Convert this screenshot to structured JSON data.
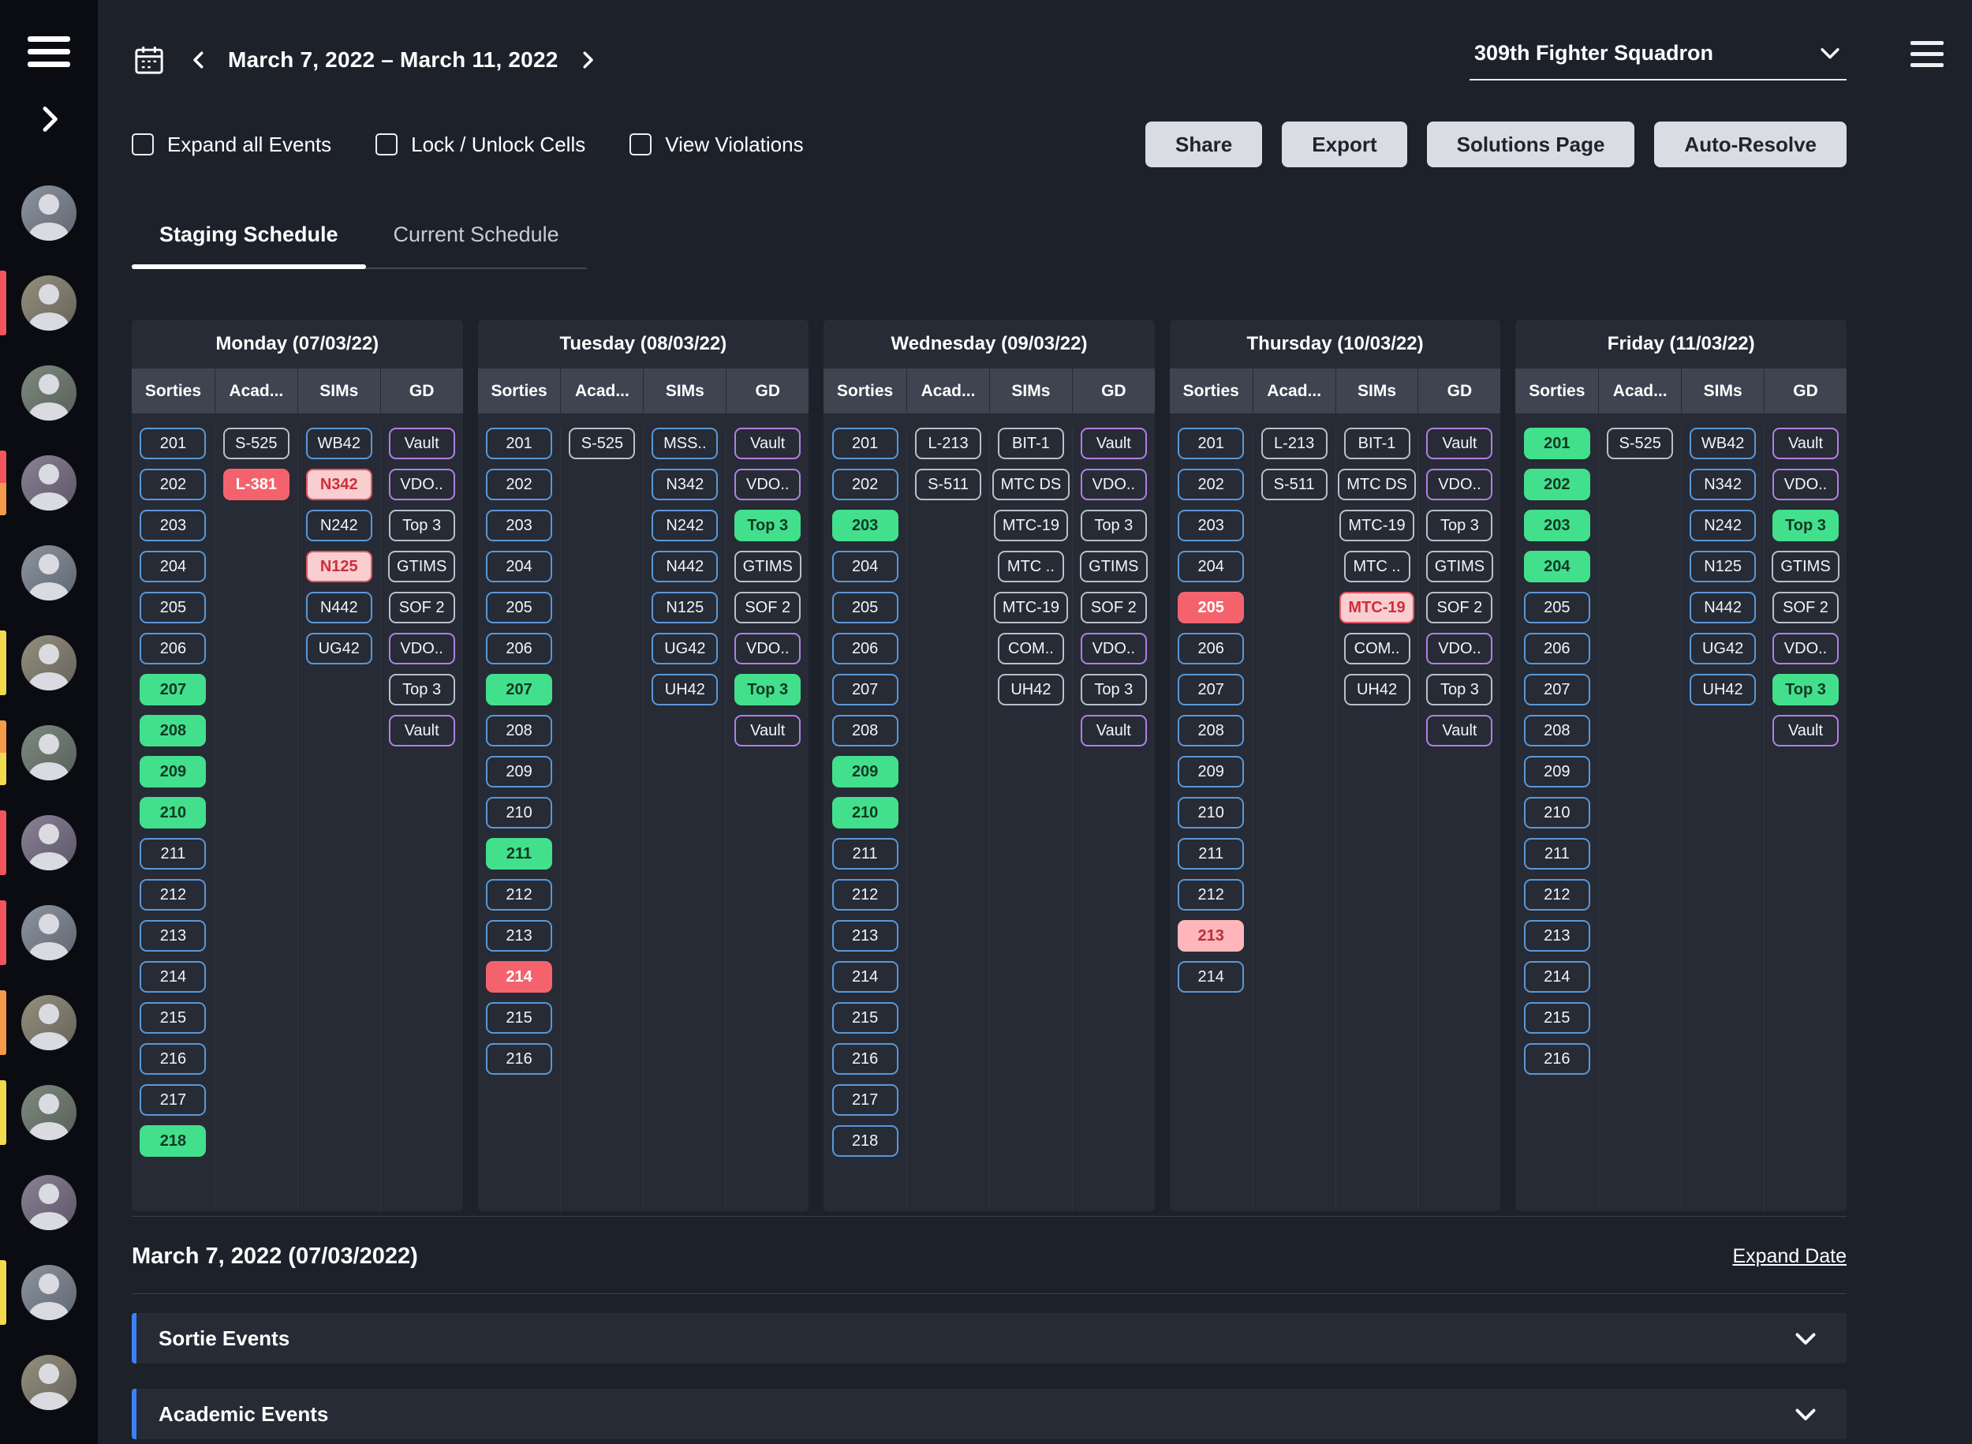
{
  "colors": {
    "accent_blue": "#3b82f6",
    "chip_blue_outline": "#5b97d8",
    "chip_gray_outline": "#b9c0cb",
    "chip_purple_outline": "#b37fe3",
    "chip_green": "#42e08c",
    "chip_red": "#f4636d",
    "chip_pink": "#ffb6ba",
    "bar_red": "#f2545e",
    "bar_orange": "#f59a4b",
    "bar_yellow": "#f2d94e"
  },
  "icons": {
    "menu": "hamburger-icon",
    "sidebar_expand": "chevron-right-icon",
    "calendar": "calendar-icon",
    "prev": "chevron-left-icon",
    "next": "chevron-right-icon",
    "dropdown": "chevron-down-icon",
    "section_toggle": "chevron-down-icon"
  },
  "variants": {
    "b": "blue-outline",
    "gy": "gray-outline",
    "p": "purple-outline",
    "g": "green-filled",
    "r": "red-filled",
    "pk": "pink-filled",
    "ro": "red-alert-filled"
  },
  "sidebar": {
    "users": [
      {
        "bars": []
      },
      {
        "bars": [
          "red"
        ]
      },
      {
        "bars": []
      },
      {
        "bars": [
          "red",
          "orange"
        ]
      },
      {
        "bars": []
      },
      {
        "bars": [
          "yellow"
        ]
      },
      {
        "bars": [
          "orange",
          "yellow"
        ]
      },
      {
        "bars": [
          "red"
        ]
      },
      {
        "bars": [
          "red"
        ]
      },
      {
        "bars": [
          "orange"
        ]
      },
      {
        "bars": [
          "yellow"
        ]
      },
      {
        "bars": []
      },
      {
        "bars": [
          "yellow"
        ]
      },
      {
        "bars": []
      }
    ]
  },
  "header": {
    "date_range": "March 7, 2022 – March 11, 2022",
    "squadron": "309th Fighter Squadron"
  },
  "controls": {
    "checkboxes": [
      {
        "label": "Expand all Events",
        "checked": false
      },
      {
        "label": "Lock / Unlock Cells",
        "checked": false
      },
      {
        "label": "View Violations",
        "checked": false
      }
    ],
    "buttons": [
      "Share",
      "Export",
      "Solutions Page",
      "Auto-Resolve"
    ]
  },
  "tabs": [
    {
      "label": "Staging Schedule",
      "active": true
    },
    {
      "label": "Current Schedule",
      "active": false
    }
  ],
  "schedule": {
    "column_headers": [
      "Sorties",
      "Acad...",
      "SIMs",
      "GD"
    ],
    "days": [
      {
        "key": "monday",
        "title": "Monday (07/03/22)",
        "sorties": [
          {
            "t": "201",
            "v": "b"
          },
          {
            "t": "202",
            "v": "b"
          },
          {
            "t": "203",
            "v": "b"
          },
          {
            "t": "204",
            "v": "b"
          },
          {
            "t": "205",
            "v": "b"
          },
          {
            "t": "206",
            "v": "b"
          },
          {
            "t": "207",
            "v": "g"
          },
          {
            "t": "208",
            "v": "g"
          },
          {
            "t": "209",
            "v": "g"
          },
          {
            "t": "210",
            "v": "g"
          },
          {
            "t": "211",
            "v": "b"
          },
          {
            "t": "212",
            "v": "b"
          },
          {
            "t": "213",
            "v": "b"
          },
          {
            "t": "214",
            "v": "b"
          },
          {
            "t": "215",
            "v": "b"
          },
          {
            "t": "216",
            "v": "b"
          },
          {
            "t": "217",
            "v": "b"
          },
          {
            "t": "218",
            "v": "g"
          }
        ],
        "acad": [
          {
            "t": "S-525",
            "v": "gy"
          },
          {
            "t": "L-381",
            "v": "r"
          }
        ],
        "sims": [
          {
            "t": "WB42",
            "v": "b"
          },
          {
            "t": "N342",
            "v": "ro"
          },
          {
            "t": "N242",
            "v": "b"
          },
          {
            "t": "N125",
            "v": "ro"
          },
          {
            "t": "N442",
            "v": "b"
          },
          {
            "t": "UG42",
            "v": "b"
          }
        ],
        "gd": [
          {
            "t": "Vault",
            "v": "p"
          },
          {
            "t": "VDO..",
            "v": "p"
          },
          {
            "t": "Top 3",
            "v": "gy"
          },
          {
            "t": "GTIMS",
            "v": "gy"
          },
          {
            "t": "SOF 2",
            "v": "gy"
          },
          {
            "t": "VDO..",
            "v": "p"
          },
          {
            "t": "Top 3",
            "v": "gy"
          },
          {
            "t": "Vault",
            "v": "p"
          }
        ]
      },
      {
        "key": "tuesday",
        "title": "Tuesday (08/03/22)",
        "sorties": [
          {
            "t": "201",
            "v": "b"
          },
          {
            "t": "202",
            "v": "b"
          },
          {
            "t": "203",
            "v": "b"
          },
          {
            "t": "204",
            "v": "b"
          },
          {
            "t": "205",
            "v": "b"
          },
          {
            "t": "206",
            "v": "b"
          },
          {
            "t": "207",
            "v": "g"
          },
          {
            "t": "208",
            "v": "b"
          },
          {
            "t": "209",
            "v": "b"
          },
          {
            "t": "210",
            "v": "b"
          },
          {
            "t": "211",
            "v": "g"
          },
          {
            "t": "212",
            "v": "b"
          },
          {
            "t": "213",
            "v": "b"
          },
          {
            "t": "214",
            "v": "r"
          },
          {
            "t": "215",
            "v": "b"
          },
          {
            "t": "216",
            "v": "b"
          }
        ],
        "acad": [
          {
            "t": "S-525",
            "v": "gy"
          }
        ],
        "sims": [
          {
            "t": "MSS..",
            "v": "b"
          },
          {
            "t": "N342",
            "v": "b"
          },
          {
            "t": "N242",
            "v": "b"
          },
          {
            "t": "N442",
            "v": "b"
          },
          {
            "t": "N125",
            "v": "b"
          },
          {
            "t": "UG42",
            "v": "b"
          },
          {
            "t": "UH42",
            "v": "b"
          }
        ],
        "gd": [
          {
            "t": "Vault",
            "v": "p"
          },
          {
            "t": "VDO..",
            "v": "p"
          },
          {
            "t": "Top 3",
            "v": "g"
          },
          {
            "t": "GTIMS",
            "v": "gy"
          },
          {
            "t": "SOF 2",
            "v": "gy"
          },
          {
            "t": "VDO..",
            "v": "p"
          },
          {
            "t": "Top 3",
            "v": "g"
          },
          {
            "t": "Vault",
            "v": "p"
          }
        ]
      },
      {
        "key": "wednesday",
        "title": "Wednesday (09/03/22)",
        "sorties": [
          {
            "t": "201",
            "v": "b"
          },
          {
            "t": "202",
            "v": "b"
          },
          {
            "t": "203",
            "v": "g"
          },
          {
            "t": "204",
            "v": "b"
          },
          {
            "t": "205",
            "v": "b"
          },
          {
            "t": "206",
            "v": "b"
          },
          {
            "t": "207",
            "v": "b"
          },
          {
            "t": "208",
            "v": "b"
          },
          {
            "t": "209",
            "v": "g"
          },
          {
            "t": "210",
            "v": "g"
          },
          {
            "t": "211",
            "v": "b"
          },
          {
            "t": "212",
            "v": "b"
          },
          {
            "t": "213",
            "v": "b"
          },
          {
            "t": "214",
            "v": "b"
          },
          {
            "t": "215",
            "v": "b"
          },
          {
            "t": "216",
            "v": "b"
          },
          {
            "t": "217",
            "v": "b"
          },
          {
            "t": "218",
            "v": "b"
          }
        ],
        "acad": [
          {
            "t": "L-213",
            "v": "gy"
          },
          {
            "t": "S-511",
            "v": "gy"
          }
        ],
        "sims": [
          {
            "t": "BIT-1",
            "v": "gy"
          },
          {
            "t": "MTC DS",
            "v": "gy"
          },
          {
            "t": "MTC-19",
            "v": "gy"
          },
          {
            "t": "MTC ..",
            "v": "gy"
          },
          {
            "t": "MTC-19",
            "v": "gy"
          },
          {
            "t": "COM..",
            "v": "gy"
          },
          {
            "t": "UH42",
            "v": "gy"
          }
        ],
        "gd": [
          {
            "t": "Vault",
            "v": "p"
          },
          {
            "t": "VDO..",
            "v": "p"
          },
          {
            "t": "Top 3",
            "v": "gy"
          },
          {
            "t": "GTIMS",
            "v": "gy"
          },
          {
            "t": "SOF 2",
            "v": "gy"
          },
          {
            "t": "VDO..",
            "v": "p"
          },
          {
            "t": "Top 3",
            "v": "gy"
          },
          {
            "t": "Vault",
            "v": "p"
          }
        ]
      },
      {
        "key": "thursday",
        "title": "Thursday (10/03/22)",
        "sorties": [
          {
            "t": "201",
            "v": "b"
          },
          {
            "t": "202",
            "v": "b"
          },
          {
            "t": "203",
            "v": "b"
          },
          {
            "t": "204",
            "v": "b"
          },
          {
            "t": "205",
            "v": "r"
          },
          {
            "t": "206",
            "v": "b"
          },
          {
            "t": "207",
            "v": "b"
          },
          {
            "t": "208",
            "v": "b"
          },
          {
            "t": "209",
            "v": "b"
          },
          {
            "t": "210",
            "v": "b"
          },
          {
            "t": "211",
            "v": "b"
          },
          {
            "t": "212",
            "v": "b"
          },
          {
            "t": "213",
            "v": "pk"
          },
          {
            "t": "214",
            "v": "b"
          }
        ],
        "acad": [
          {
            "t": "L-213",
            "v": "gy"
          },
          {
            "t": "S-511",
            "v": "gy"
          }
        ],
        "sims": [
          {
            "t": "BIT-1",
            "v": "gy"
          },
          {
            "t": "MTC DS",
            "v": "gy"
          },
          {
            "t": "MTC-19",
            "v": "gy"
          },
          {
            "t": "MTC ..",
            "v": "gy"
          },
          {
            "t": "MTC-19",
            "v": "ro"
          },
          {
            "t": "COM..",
            "v": "gy"
          },
          {
            "t": "UH42",
            "v": "gy"
          }
        ],
        "gd": [
          {
            "t": "Vault",
            "v": "p"
          },
          {
            "t": "VDO..",
            "v": "p"
          },
          {
            "t": "Top 3",
            "v": "gy"
          },
          {
            "t": "GTIMS",
            "v": "gy"
          },
          {
            "t": "SOF 2",
            "v": "gy"
          },
          {
            "t": "VDO..",
            "v": "p"
          },
          {
            "t": "Top 3",
            "v": "gy"
          },
          {
            "t": "Vault",
            "v": "p"
          }
        ]
      },
      {
        "key": "friday",
        "title": "Friday (11/03/22)",
        "sorties": [
          {
            "t": "201",
            "v": "g"
          },
          {
            "t": "202",
            "v": "g"
          },
          {
            "t": "203",
            "v": "g"
          },
          {
            "t": "204",
            "v": "g"
          },
          {
            "t": "205",
            "v": "b"
          },
          {
            "t": "206",
            "v": "b"
          },
          {
            "t": "207",
            "v": "b"
          },
          {
            "t": "208",
            "v": "b"
          },
          {
            "t": "209",
            "v": "b"
          },
          {
            "t": "210",
            "v": "b"
          },
          {
            "t": "211",
            "v": "b"
          },
          {
            "t": "212",
            "v": "b"
          },
          {
            "t": "213",
            "v": "b"
          },
          {
            "t": "214",
            "v": "b"
          },
          {
            "t": "215",
            "v": "b"
          },
          {
            "t": "216",
            "v": "b"
          }
        ],
        "acad": [
          {
            "t": "S-525",
            "v": "gy"
          }
        ],
        "sims": [
          {
            "t": "WB42",
            "v": "b"
          },
          {
            "t": "N342",
            "v": "b"
          },
          {
            "t": "N242",
            "v": "b"
          },
          {
            "t": "N125",
            "v": "b"
          },
          {
            "t": "N442",
            "v": "b"
          },
          {
            "t": "UG42",
            "v": "b"
          },
          {
            "t": "UH42",
            "v": "b"
          }
        ],
        "gd": [
          {
            "t": "Vault",
            "v": "p"
          },
          {
            "t": "VDO..",
            "v": "p"
          },
          {
            "t": "Top 3",
            "v": "g"
          },
          {
            "t": "GTIMS",
            "v": "gy"
          },
          {
            "t": "SOF 2",
            "v": "gy"
          },
          {
            "t": "VDO..",
            "v": "p"
          },
          {
            "t": "Top 3",
            "v": "g"
          },
          {
            "t": "Vault",
            "v": "p"
          }
        ]
      }
    ]
  },
  "detail": {
    "date_heading": "March 7, 2022 (07/03/2022)",
    "expand_link": "Expand Date",
    "sections": [
      "Sortie Events",
      "Academic Events"
    ]
  }
}
